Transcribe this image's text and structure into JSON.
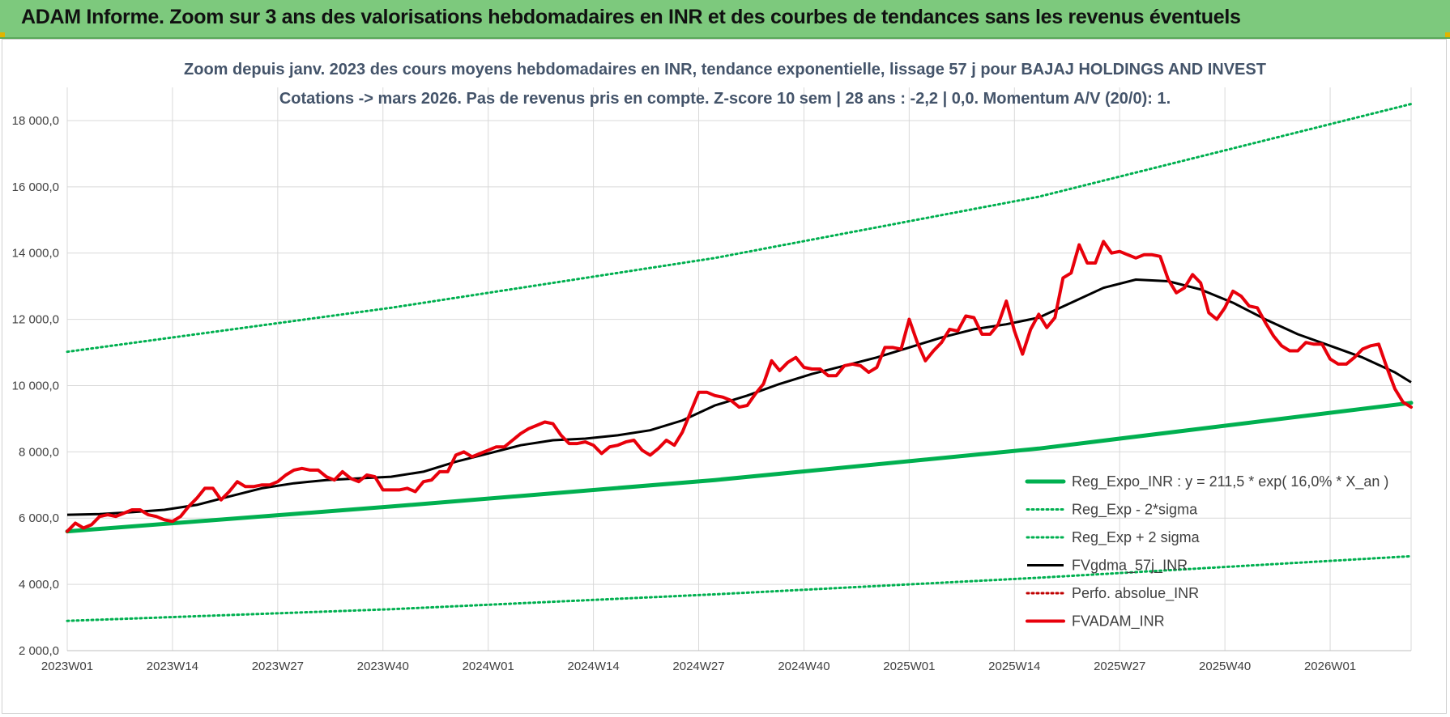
{
  "banner": {
    "title": "ADAM Informe. Zoom sur 3 ans des valorisations hebdomadaires en INR et des courbes de tendances sans les revenus éventuels"
  },
  "colors": {
    "banner_bg": "#7dc97d",
    "price": "#e8000b",
    "moving_average": "#000000",
    "regression": "#00b050",
    "perfo": "#c00000"
  },
  "chart_data": {
    "type": "line",
    "title": "Zoom depuis janv. 2023 des cours moyens hebdomadaires en INR, tendance exponentielle, lissage 57 j pour BAJAJ HOLDINGS AND INVEST",
    "subtitle": "Cotations -> mars 2026. Pas de revenus pris en compte. Z-score 10 sem | 28 ans : -2,2 | 0,0. Momentum A/V (20/0): 1.",
    "xlabel": "",
    "ylabel": "",
    "ylim": [
      2000,
      19000
    ],
    "yticks": [
      2000,
      4000,
      6000,
      8000,
      10000,
      12000,
      14000,
      16000,
      18000
    ],
    "ytick_labels": [
      "2 000,0",
      "4 000,0",
      "6 000,0",
      "8 000,0",
      "10 000,0",
      "12 000,0",
      "14 000,0",
      "16 000,0",
      "18 000,0"
    ],
    "x_range_weeks": [
      0,
      166
    ],
    "xticks": [
      {
        "week": 0,
        "label": "2023W01"
      },
      {
        "week": 13,
        "label": "2023W14"
      },
      {
        "week": 26,
        "label": "2023W27"
      },
      {
        "week": 39,
        "label": "2023W40"
      },
      {
        "week": 52,
        "label": "2024W01"
      },
      {
        "week": 65,
        "label": "2024W14"
      },
      {
        "week": 78,
        "label": "2024W27"
      },
      {
        "week": 91,
        "label": "2024W40"
      },
      {
        "week": 104,
        "label": "2025W01"
      },
      {
        "week": 117,
        "label": "2025W14"
      },
      {
        "week": 130,
        "label": "2025W27"
      },
      {
        "week": 143,
        "label": "2025W40"
      },
      {
        "week": 156,
        "label": "2026W01"
      }
    ],
    "grid": true,
    "legend_position": "bottom-right",
    "series": [
      {
        "name": "Reg_Expo_INR : y = 211,5 * exp( 16,0% *  X_an )",
        "style": "solid-thick",
        "color": "#00b050",
        "points": [
          [
            0,
            5600
          ],
          [
            40,
            6350
          ],
          [
            80,
            7150
          ],
          [
            120,
            8100
          ],
          [
            166,
            9480
          ]
        ]
      },
      {
        "name": "Reg_Exp - 2*sigma",
        "style": "dotted",
        "color": "#00b050",
        "points": [
          [
            0,
            2900
          ],
          [
            40,
            3250
          ],
          [
            80,
            3700
          ],
          [
            120,
            4200
          ],
          [
            166,
            4850
          ]
        ]
      },
      {
        "name": "Reg_Exp + 2 sigma",
        "style": "dotted",
        "color": "#00b050",
        "points": [
          [
            0,
            11020
          ],
          [
            40,
            12350
          ],
          [
            80,
            13850
          ],
          [
            120,
            15700
          ],
          [
            166,
            18500
          ]
        ]
      },
      {
        "name": "FVgdma_57j_INR",
        "style": "solid",
        "color": "#000000",
        "points": [
          [
            0,
            6100
          ],
          [
            4,
            6120
          ],
          [
            8,
            6180
          ],
          [
            12,
            6250
          ],
          [
            16,
            6400
          ],
          [
            20,
            6650
          ],
          [
            24,
            6900
          ],
          [
            28,
            7050
          ],
          [
            32,
            7150
          ],
          [
            36,
            7200
          ],
          [
            40,
            7250
          ],
          [
            44,
            7400
          ],
          [
            48,
            7700
          ],
          [
            52,
            7950
          ],
          [
            56,
            8200
          ],
          [
            60,
            8350
          ],
          [
            64,
            8400
          ],
          [
            68,
            8500
          ],
          [
            72,
            8650
          ],
          [
            76,
            8950
          ],
          [
            80,
            9400
          ],
          [
            84,
            9700
          ],
          [
            88,
            10050
          ],
          [
            92,
            10350
          ],
          [
            96,
            10600
          ],
          [
            100,
            10850
          ],
          [
            104,
            11150
          ],
          [
            108,
            11450
          ],
          [
            112,
            11700
          ],
          [
            116,
            11850
          ],
          [
            120,
            12050
          ],
          [
            124,
            12500
          ],
          [
            128,
            12950
          ],
          [
            132,
            13200
          ],
          [
            136,
            13150
          ],
          [
            140,
            12900
          ],
          [
            144,
            12500
          ],
          [
            148,
            12000
          ],
          [
            152,
            11550
          ],
          [
            156,
            11200
          ],
          [
            160,
            10850
          ],
          [
            164,
            10400
          ],
          [
            166,
            10100
          ]
        ]
      },
      {
        "name": "Perfo. absolue_INR",
        "style": "dotted",
        "color": "#c00000",
        "points": []
      },
      {
        "name": "FVADAM_INR",
        "style": "solid-thick",
        "color": "#e8000b",
        "points": [
          [
            0,
            5600
          ],
          [
            1,
            5850
          ],
          [
            2,
            5700
          ],
          [
            3,
            5800
          ],
          [
            4,
            6050
          ],
          [
            5,
            6100
          ],
          [
            6,
            6050
          ],
          [
            7,
            6150
          ],
          [
            8,
            6250
          ],
          [
            9,
            6250
          ],
          [
            10,
            6100
          ],
          [
            11,
            6050
          ],
          [
            12,
            5950
          ],
          [
            13,
            5900
          ],
          [
            14,
            6050
          ],
          [
            15,
            6350
          ],
          [
            16,
            6600
          ],
          [
            17,
            6900
          ],
          [
            18,
            6900
          ],
          [
            19,
            6550
          ],
          [
            20,
            6800
          ],
          [
            21,
            7100
          ],
          [
            22,
            6950
          ],
          [
            23,
            6950
          ],
          [
            24,
            7000
          ],
          [
            25,
            7000
          ],
          [
            26,
            7100
          ],
          [
            27,
            7300
          ],
          [
            28,
            7450
          ],
          [
            29,
            7500
          ],
          [
            30,
            7450
          ],
          [
            31,
            7450
          ],
          [
            32,
            7250
          ],
          [
            33,
            7150
          ],
          [
            34,
            7400
          ],
          [
            35,
            7200
          ],
          [
            36,
            7100
          ],
          [
            37,
            7300
          ],
          [
            38,
            7250
          ],
          [
            39,
            6850
          ],
          [
            40,
            6850
          ],
          [
            41,
            6850
          ],
          [
            42,
            6900
          ],
          [
            43,
            6800
          ],
          [
            44,
            7100
          ],
          [
            45,
            7150
          ],
          [
            46,
            7400
          ],
          [
            47,
            7400
          ],
          [
            48,
            7900
          ],
          [
            49,
            8000
          ],
          [
            50,
            7850
          ],
          [
            51,
            7950
          ],
          [
            52,
            8050
          ],
          [
            53,
            8150
          ],
          [
            54,
            8150
          ],
          [
            55,
            8350
          ],
          [
            56,
            8550
          ],
          [
            57,
            8700
          ],
          [
            58,
            8800
          ],
          [
            59,
            8900
          ],
          [
            60,
            8850
          ],
          [
            61,
            8500
          ],
          [
            62,
            8250
          ],
          [
            63,
            8250
          ],
          [
            64,
            8300
          ],
          [
            65,
            8200
          ],
          [
            66,
            7950
          ],
          [
            67,
            8150
          ],
          [
            68,
            8200
          ],
          [
            69,
            8300
          ],
          [
            70,
            8350
          ],
          [
            71,
            8050
          ],
          [
            72,
            7900
          ],
          [
            73,
            8100
          ],
          [
            74,
            8350
          ],
          [
            75,
            8200
          ],
          [
            76,
            8600
          ],
          [
            77,
            9200
          ],
          [
            78,
            9800
          ],
          [
            79,
            9800
          ],
          [
            80,
            9700
          ],
          [
            81,
            9650
          ],
          [
            82,
            9550
          ],
          [
            83,
            9350
          ],
          [
            84,
            9400
          ],
          [
            85,
            9750
          ],
          [
            86,
            10050
          ],
          [
            87,
            10750
          ],
          [
            88,
            10450
          ],
          [
            89,
            10700
          ],
          [
            90,
            10850
          ],
          [
            91,
            10550
          ],
          [
            92,
            10500
          ],
          [
            93,
            10500
          ],
          [
            94,
            10300
          ],
          [
            95,
            10300
          ],
          [
            96,
            10600
          ],
          [
            97,
            10650
          ],
          [
            98,
            10600
          ],
          [
            99,
            10400
          ],
          [
            100,
            10550
          ],
          [
            101,
            11150
          ],
          [
            102,
            11150
          ],
          [
            103,
            11100
          ],
          [
            104,
            12000
          ],
          [
            105,
            11300
          ],
          [
            106,
            10750
          ],
          [
            107,
            11050
          ],
          [
            108,
            11300
          ],
          [
            109,
            11700
          ],
          [
            110,
            11650
          ],
          [
            111,
            12100
          ],
          [
            112,
            12050
          ],
          [
            113,
            11550
          ],
          [
            114,
            11550
          ],
          [
            115,
            11850
          ],
          [
            116,
            12550
          ],
          [
            117,
            11650
          ],
          [
            118,
            10950
          ],
          [
            119,
            11700
          ],
          [
            120,
            12150
          ],
          [
            121,
            11750
          ],
          [
            122,
            12050
          ],
          [
            123,
            13250
          ],
          [
            124,
            13400
          ],
          [
            125,
            14250
          ],
          [
            126,
            13700
          ],
          [
            127,
            13700
          ],
          [
            128,
            14350
          ],
          [
            129,
            14000
          ],
          [
            130,
            14050
          ],
          [
            131,
            13950
          ],
          [
            132,
            13850
          ],
          [
            133,
            13950
          ],
          [
            134,
            13950
          ],
          [
            135,
            13900
          ],
          [
            136,
            13200
          ],
          [
            137,
            12800
          ],
          [
            138,
            12950
          ],
          [
            139,
            13350
          ],
          [
            140,
            13100
          ],
          [
            141,
            12200
          ],
          [
            142,
            12000
          ],
          [
            143,
            12350
          ],
          [
            144,
            12850
          ],
          [
            145,
            12700
          ],
          [
            146,
            12400
          ],
          [
            147,
            12350
          ],
          [
            148,
            11900
          ],
          [
            149,
            11500
          ],
          [
            150,
            11200
          ],
          [
            151,
            11050
          ],
          [
            152,
            11050
          ],
          [
            153,
            11300
          ],
          [
            154,
            11250
          ],
          [
            155,
            11250
          ],
          [
            156,
            10800
          ],
          [
            157,
            10650
          ],
          [
            158,
            10650
          ],
          [
            159,
            10850
          ],
          [
            160,
            11100
          ],
          [
            161,
            11200
          ],
          [
            162,
            11250
          ],
          [
            163,
            10550
          ],
          [
            164,
            9900
          ],
          [
            165,
            9500
          ],
          [
            166,
            9350
          ]
        ]
      }
    ]
  }
}
